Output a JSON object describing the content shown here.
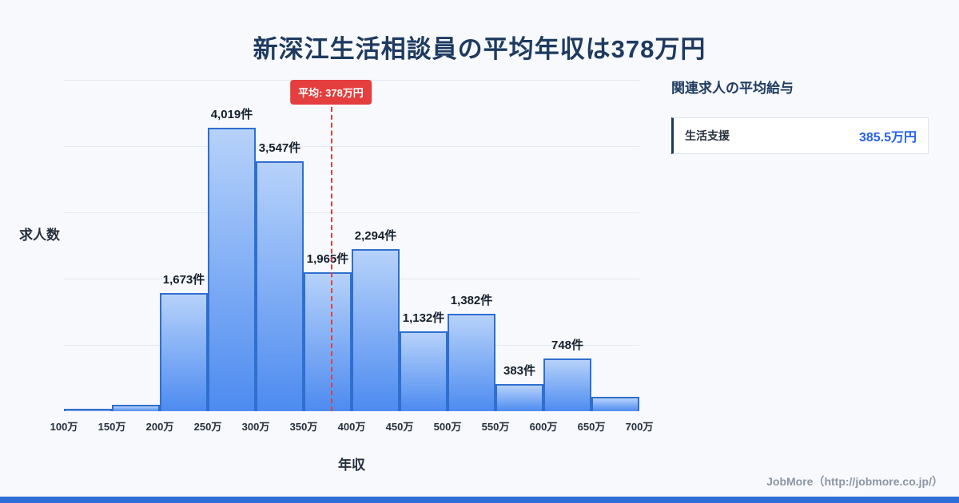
{
  "title": "新深江生活相談員の平均年収は378万円",
  "chart_data": {
    "type": "bar",
    "title": "新深江生活相談員の平均年収は378万円",
    "xlabel": "年収",
    "ylabel": "求人数",
    "bin_edge_labels": [
      "100万",
      "150万",
      "200万",
      "250万",
      "300万",
      "350万",
      "400万",
      "450万",
      "500万",
      "550万",
      "600万",
      "650万",
      "700万"
    ],
    "values": [
      20,
      90,
      1673,
      4019,
      3547,
      1965,
      2294,
      1132,
      1382,
      383,
      748,
      200
    ],
    "bar_labels": [
      "",
      "",
      "1,673件",
      "4,019件",
      "3,547件",
      "1,965件",
      "2,294件",
      "1,132件",
      "1,382件",
      "383件",
      "748件",
      ""
    ],
    "x_range": [
      100,
      700
    ],
    "ylim": [
      0,
      4700
    ],
    "grid": true,
    "gridline_count": 5,
    "average": {
      "value": 378,
      "label": "平均: 378万円"
    },
    "legend": "none"
  },
  "side_panel": {
    "heading": "関連求人の平均給与",
    "items": [
      {
        "label": "生活支援",
        "value": "385.5万円"
      }
    ]
  },
  "footer": {
    "credit": "JobMore（http://jobmore.co.jp/）"
  },
  "colors": {
    "background": "#f7f9fc",
    "title_text": "#1e3a5f",
    "bar_fill_top": "#b6d2fa",
    "bar_fill_bottom": "#4d8bf0",
    "bar_border": "#2f6fce",
    "average_accent": "#e53e3e",
    "related_value_text": "#2563eb",
    "bottom_bar": "#2e6fd8",
    "footer_text": "#8b95a4"
  }
}
